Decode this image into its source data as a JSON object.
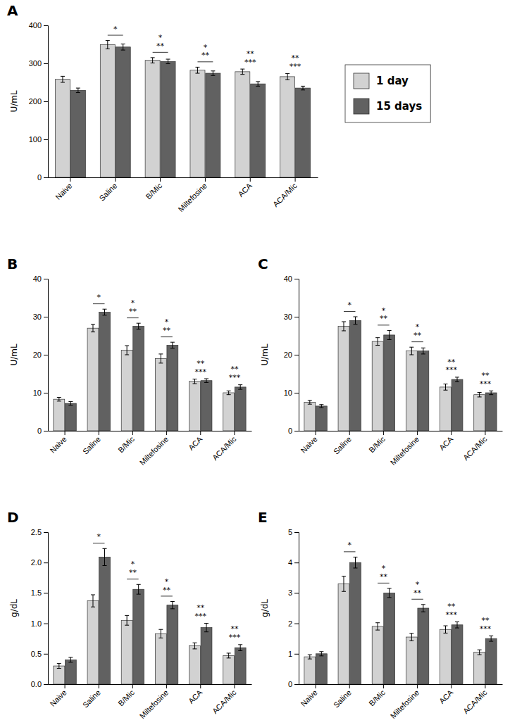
{
  "chart_data": [
    {
      "type": "bar",
      "title": "A",
      "ylabel": "U/mL",
      "categories": [
        "Naive",
        "Saline",
        "B/Mic",
        "Miltefosine",
        "ACA",
        "ACA/Mic"
      ],
      "series": [
        {
          "name": "1 day",
          "color": "#d2d2d2",
          "values": [
            258,
            349,
            308,
            282,
            278,
            265
          ],
          "errors": [
            8,
            11,
            7,
            8,
            7,
            8
          ]
        },
        {
          "name": "15 days",
          "color": "#616161",
          "values": [
            229,
            343,
            305,
            274,
            246,
            235
          ],
          "errors": [
            6,
            8,
            6,
            6,
            6,
            5
          ]
        }
      ],
      "ylim": [
        0,
        400
      ],
      "yticks": [
        0,
        100,
        200,
        300,
        400
      ],
      "legend": "right",
      "annotations": [
        {
          "index": 1,
          "texts": [
            "*"
          ],
          "bracket": true
        },
        {
          "index": 2,
          "texts": [
            "**",
            "*"
          ],
          "bracket": true
        },
        {
          "index": 3,
          "texts": [
            "**",
            "*"
          ],
          "bracket": true
        },
        {
          "index": 4,
          "texts": [
            "***",
            "**"
          ],
          "bracket": false
        },
        {
          "index": 5,
          "texts": [
            "***",
            "**"
          ],
          "bracket": false
        }
      ]
    },
    {
      "type": "bar",
      "title": "B",
      "ylabel": "U/mL",
      "categories": [
        "Naive",
        "Saline",
        "B/Mic",
        "Miltefosine",
        "ACA",
        "ACA/Mic"
      ],
      "series": [
        {
          "color": "#d2d2d2",
          "values": [
            8.3,
            27.0,
            21.2,
            19.0,
            13.0,
            10.0
          ],
          "errors": [
            0.5,
            1.0,
            1.2,
            1.2,
            0.6,
            0.5
          ]
        },
        {
          "color": "#616161",
          "values": [
            7.2,
            31.2,
            27.5,
            22.5,
            13.2,
            11.5
          ],
          "errors": [
            0.5,
            0.8,
            0.8,
            0.8,
            0.5,
            0.6
          ]
        }
      ],
      "ylim": [
        0,
        40
      ],
      "yticks": [
        0,
        10,
        20,
        30,
        40
      ],
      "annotations": [
        {
          "index": 1,
          "texts": [
            "*"
          ],
          "bracket": true
        },
        {
          "index": 2,
          "texts": [
            "**",
            "*"
          ],
          "bracket": true
        },
        {
          "index": 3,
          "texts": [
            "**",
            "*"
          ],
          "bracket": true
        },
        {
          "index": 4,
          "texts": [
            "***",
            "**"
          ],
          "bracket": false
        },
        {
          "index": 5,
          "texts": [
            "***",
            "**"
          ],
          "bracket": false
        }
      ]
    },
    {
      "type": "bar",
      "title": "C",
      "ylabel": "U/mL",
      "categories": [
        "Naive",
        "Saline",
        "B/Mic",
        "Miltefosine",
        "ACA",
        "ACA/Mic"
      ],
      "series": [
        {
          "color": "#d2d2d2",
          "values": [
            7.5,
            27.5,
            23.5,
            21.0,
            11.5,
            9.5
          ],
          "errors": [
            0.5,
            1.2,
            1.0,
            1.0,
            0.8,
            0.6
          ]
        },
        {
          "color": "#616161",
          "values": [
            6.5,
            29.0,
            25.2,
            21.0,
            13.5,
            10.0
          ],
          "errors": [
            0.4,
            1.0,
            1.2,
            0.8,
            0.6,
            0.5
          ]
        }
      ],
      "ylim": [
        0,
        40
      ],
      "yticks": [
        0,
        10,
        20,
        30,
        40
      ],
      "annotations": [
        {
          "index": 1,
          "texts": [
            "*"
          ],
          "bracket": true
        },
        {
          "index": 2,
          "texts": [
            "**",
            "*"
          ],
          "bracket": true
        },
        {
          "index": 3,
          "texts": [
            "**",
            "*"
          ],
          "bracket": true
        },
        {
          "index": 4,
          "texts": [
            "***",
            "**"
          ],
          "bracket": false
        },
        {
          "index": 5,
          "texts": [
            "***",
            "**"
          ],
          "bracket": false
        }
      ]
    },
    {
      "type": "bar",
      "title": "D",
      "ylabel": "g/dL",
      "categories": [
        "Naive",
        "Saline",
        "B/Mic",
        "Miltefosine",
        "ACA",
        "ACA/Mic"
      ],
      "series": [
        {
          "color": "#d2d2d2",
          "values": [
            0.3,
            1.37,
            1.05,
            0.83,
            0.63,
            0.47
          ],
          "errors": [
            0.04,
            0.1,
            0.08,
            0.07,
            0.05,
            0.04
          ]
        },
        {
          "color": "#616161",
          "values": [
            0.4,
            2.09,
            1.56,
            1.3,
            0.93,
            0.6
          ],
          "errors": [
            0.04,
            0.14,
            0.08,
            0.06,
            0.07,
            0.05
          ]
        }
      ],
      "ylim": [
        0,
        2.5
      ],
      "yticks": [
        {
          "value": 0,
          "label": "0.0"
        },
        {
          "value": 0.5,
          "label": "0.5"
        },
        {
          "value": 1,
          "label": "1.0"
        },
        {
          "value": 1.5,
          "label": "1.5"
        },
        {
          "value": 2,
          "label": "2.0"
        },
        {
          "value": 2.5,
          "label": "2.5"
        }
      ],
      "annotations": [
        {
          "index": 1,
          "texts": [
            "*"
          ],
          "bracket": true
        },
        {
          "index": 2,
          "texts": [
            "**",
            "*"
          ],
          "bracket": true
        },
        {
          "index": 3,
          "texts": [
            "**",
            "*"
          ],
          "bracket": true
        },
        {
          "index": 4,
          "texts": [
            "***",
            "**"
          ],
          "bracket": false
        },
        {
          "index": 5,
          "texts": [
            "***",
            "**"
          ],
          "bracket": false
        }
      ]
    },
    {
      "type": "bar",
      "title": "E",
      "ylabel": "g/dL",
      "categories": [
        "Naive",
        "Saline",
        "B/Mic",
        "Miltefosine",
        "ACA",
        "ACA/Mic"
      ],
      "series": [
        {
          "color": "#d2d2d2",
          "values": [
            0.9,
            3.3,
            1.9,
            1.55,
            1.8,
            1.05
          ],
          "errors": [
            0.07,
            0.25,
            0.12,
            0.12,
            0.12,
            0.08
          ]
        },
        {
          "color": "#616161",
          "values": [
            1.0,
            4.0,
            3.0,
            2.5,
            1.95,
            1.5
          ],
          "errors": [
            0.07,
            0.18,
            0.15,
            0.12,
            0.1,
            0.09
          ]
        }
      ],
      "ylim": [
        0,
        5
      ],
      "yticks": [
        0,
        1,
        2,
        3,
        4,
        5
      ],
      "annotations": [
        {
          "index": 1,
          "texts": [
            "*"
          ],
          "bracket": true
        },
        {
          "index": 2,
          "texts": [
            "**",
            "*"
          ],
          "bracket": true
        },
        {
          "index": 3,
          "texts": [
            "**",
            "*"
          ],
          "bracket": true
        },
        {
          "index": 4,
          "texts": [
            "***",
            "**"
          ],
          "bracket": false
        },
        {
          "index": 5,
          "texts": [
            "***",
            "**"
          ],
          "bracket": false
        }
      ]
    }
  ]
}
